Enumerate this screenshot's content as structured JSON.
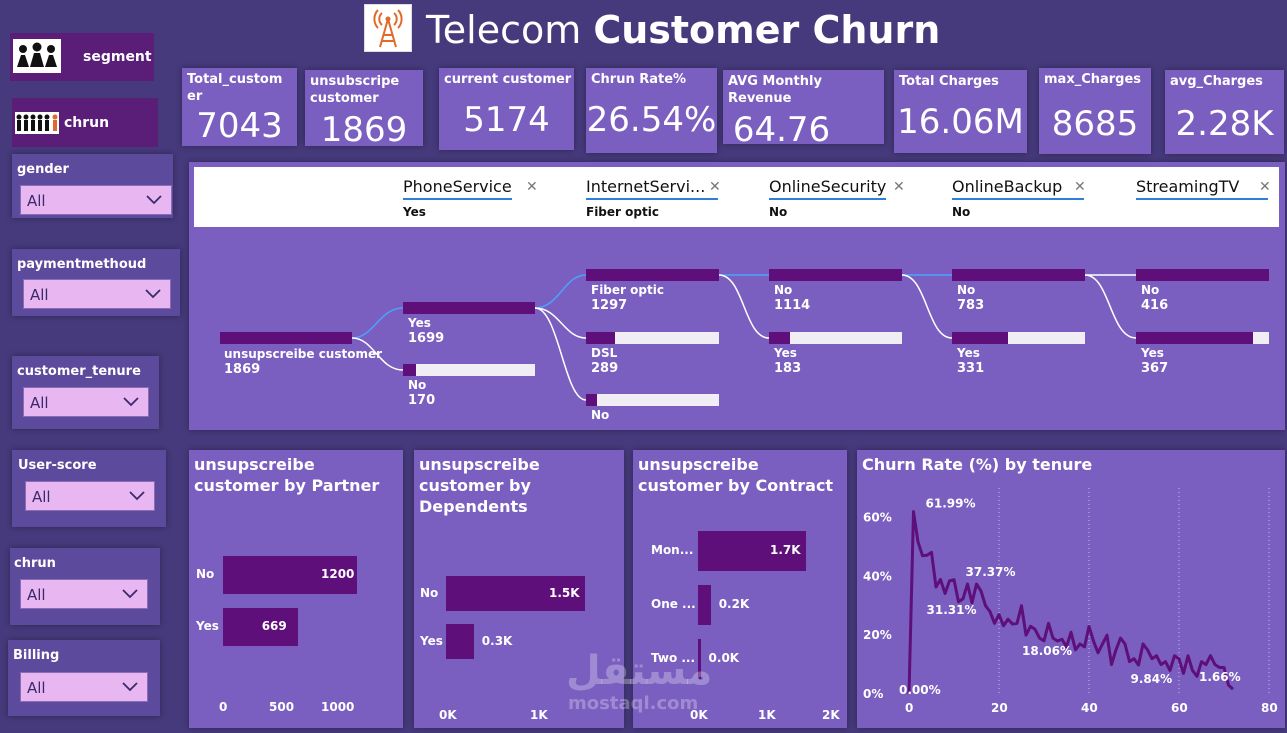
{
  "header": {
    "title_light": "Telecom",
    "title_bold": "Customer Churn",
    "logo_icon": "cell-tower-icon"
  },
  "nav": [
    {
      "label": "segment",
      "icon": "people-group-icon"
    },
    {
      "label": "chrun",
      "icon": "people-row-icon"
    }
  ],
  "slicers": [
    {
      "label": "gender",
      "value": "All"
    },
    {
      "label": "paymentmethoud",
      "value": "All"
    },
    {
      "label": "customer_tenure",
      "value": "All"
    },
    {
      "label": "User-score",
      "value": "All"
    },
    {
      "label": "chrun",
      "value": "All"
    },
    {
      "label": "Billing",
      "value": "All"
    }
  ],
  "kpis": [
    {
      "label": "Total_custom er",
      "value": "7043"
    },
    {
      "label": "unsubscripe customer",
      "value": "1869"
    },
    {
      "label": "current customer",
      "value": "5174"
    },
    {
      "label": "Chrun Rate%",
      "value": "26.54%"
    },
    {
      "label": "AVG Monthly Revenue",
      "value": "64.76"
    },
    {
      "label": "Total Charges",
      "value": "16.06M"
    },
    {
      "label": "max_Charges",
      "value": "8685"
    },
    {
      "label": "avg_Charges",
      "value": "2.28K"
    }
  ],
  "tree": {
    "levels": [
      {
        "title": "PhoneService",
        "selected": "Yes"
      },
      {
        "title": "InternetServi...",
        "selected": "Fiber optic"
      },
      {
        "title": "OnlineSecurity",
        "selected": "No"
      },
      {
        "title": "OnlineBackup",
        "selected": "No"
      },
      {
        "title": "StreamingTV",
        "selected": ""
      }
    ],
    "root": {
      "label": "unsupscreibe customer",
      "value": "1869"
    },
    "nodes": [
      {
        "label": "Yes",
        "value": "1699",
        "fill": 1.0
      },
      {
        "label": "No",
        "value": "170",
        "fill": 0.1
      },
      {
        "label": "Fiber optic",
        "value": "1297",
        "fill": 1.0
      },
      {
        "label": "DSL",
        "value": "289",
        "fill": 0.22
      },
      {
        "label": "No",
        "value": "",
        "fill": 0.08
      },
      {
        "label": "No",
        "value": "1114",
        "fill": 1.0
      },
      {
        "label": "Yes",
        "value": "183",
        "fill": 0.16
      },
      {
        "label": "No",
        "value": "783",
        "fill": 1.0
      },
      {
        "label": "Yes",
        "value": "331",
        "fill": 0.42
      },
      {
        "label": "No",
        "value": "416",
        "fill": 1.0
      },
      {
        "label": "Yes",
        "value": "367",
        "fill": 0.88
      }
    ]
  },
  "charts": {
    "partner": {
      "title": "unsupscreibe customer by Partner",
      "categories": [
        "No",
        "Yes"
      ],
      "values": [
        1200,
        669
      ],
      "labels": [
        "1200",
        "669"
      ],
      "ticks": [
        "0",
        "500",
        "1000"
      ]
    },
    "dependents": {
      "title": "unsupscreibe customer by Dependents",
      "categories": [
        "No",
        "Yes"
      ],
      "values": [
        1500,
        300
      ],
      "labels": [
        "1.5K",
        "0.3K"
      ],
      "ticks": [
        "0K",
        "1K"
      ]
    },
    "contract": {
      "title": "unsupscreibe customer by Contract",
      "categories": [
        "Mon...",
        "One ...",
        "Two ..."
      ],
      "values": [
        1700,
        200,
        40
      ],
      "labels": [
        "1.7K",
        "0.2K",
        "0.0K"
      ],
      "ticks": [
        "0K",
        "1K",
        "2K"
      ]
    },
    "tenure": {
      "title": "Churn Rate (%) by tenure",
      "yticks": [
        "60%",
        "40%",
        "20%",
        "0%"
      ],
      "xticks": [
        "0",
        "20",
        "40",
        "60",
        "80"
      ],
      "annotations": [
        "61.99%",
        "37.37%",
        "31.31%",
        "18.06%",
        "9.84%",
        "1.66%",
        "0.00%"
      ]
    }
  },
  "chart_data": [
    {
      "type": "bar",
      "title": "unsupscreibe customer by Partner",
      "categories": [
        "No",
        "Yes"
      ],
      "values": [
        1200,
        669
      ],
      "xlim": [
        0,
        1200
      ]
    },
    {
      "type": "bar",
      "title": "unsupscreibe customer by Dependents",
      "categories": [
        "No",
        "Yes"
      ],
      "values": [
        1500,
        300
      ]
    },
    {
      "type": "bar",
      "title": "unsupscreibe customer by Contract",
      "categories": [
        "Mon...",
        "One ...",
        "Two ..."
      ],
      "values": [
        1700,
        200,
        40
      ]
    },
    {
      "type": "line",
      "title": "Churn Rate (%) by tenure",
      "x": [
        0,
        1,
        2,
        3,
        4,
        5,
        6,
        7,
        8,
        9,
        10,
        11,
        12,
        13,
        14,
        15,
        16,
        17,
        18,
        19,
        20,
        21,
        22,
        23,
        24,
        25,
        26,
        27,
        28,
        29,
        30,
        31,
        32,
        33,
        34,
        35,
        36,
        37,
        38,
        39,
        40,
        41,
        42,
        43,
        44,
        45,
        46,
        47,
        48,
        49,
        50,
        51,
        52,
        53,
        54,
        55,
        56,
        57,
        58,
        59,
        60,
        61,
        62,
        63,
        64,
        65,
        66,
        67,
        68,
        69,
        70,
        71,
        72
      ],
      "y": [
        0,
        61.99,
        51.68,
        47,
        47.16,
        48.13,
        36.36,
        38.93,
        34.17,
        38.46,
        38.83,
        31.31,
        32.38,
        37.37,
        31,
        37.37,
        35,
        30,
        28,
        24,
        27,
        23.19,
        25.4,
        23.8,
        24,
        30,
        20,
        23,
        22,
        19,
        18.06,
        24,
        19,
        18,
        18.6,
        16,
        21,
        15,
        17,
        16,
        23,
        18,
        14,
        17,
        20,
        10,
        15,
        19,
        17,
        11,
        12,
        9.84,
        17,
        15,
        12,
        13,
        10,
        11,
        8,
        13,
        12,
        7,
        13,
        8,
        6,
        11,
        10,
        13,
        10,
        9,
        9,
        3,
        1.66
      ],
      "ylim": [
        0,
        70
      ],
      "xlim": [
        0,
        80
      ]
    }
  ]
}
